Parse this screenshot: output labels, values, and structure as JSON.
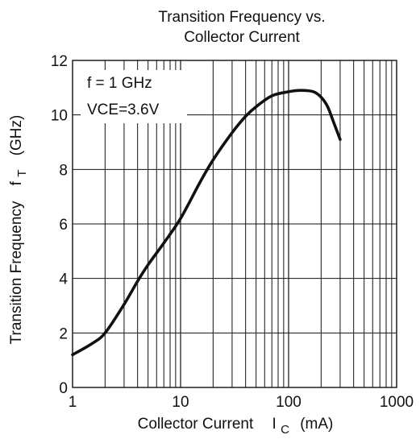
{
  "chart_data": {
    "type": "line",
    "title_lines": [
      "Transition Frequency vs.",
      "Collector Current"
    ],
    "xlabel": {
      "main": "Collector Current",
      "symbol": "I",
      "subscript": "C",
      "unit": "(mA)"
    },
    "ylabel": {
      "main": "Transition Frequency",
      "symbol": "f",
      "subscript": "T",
      "unit": "(GHz)"
    },
    "x_scale": "log",
    "xlim": [
      1,
      1000
    ],
    "ylim": [
      0,
      12
    ],
    "x_ticks": [
      1,
      10,
      100,
      1000
    ],
    "x_tick_labels": [
      "1",
      "10",
      "100",
      "1000"
    ],
    "y_ticks": [
      0,
      2,
      4,
      6,
      8,
      10,
      12
    ],
    "y_tick_labels": [
      "0",
      "2",
      "4",
      "6",
      "8",
      "10",
      "12"
    ],
    "grid": true,
    "annotations": [
      "f = 1 GHz",
      "VCE=3.6V"
    ],
    "series": [
      {
        "x": [
          1,
          1.5,
          2,
          3,
          4,
          5,
          7,
          10,
          15,
          20,
          30,
          40,
          50,
          70,
          100,
          130,
          170,
          200,
          230,
          260,
          300
        ],
        "y": [
          1.2,
          1.6,
          2.0,
          3.05,
          3.9,
          4.5,
          5.3,
          6.2,
          7.5,
          8.35,
          9.35,
          9.95,
          10.3,
          10.7,
          10.85,
          10.9,
          10.85,
          10.65,
          10.3,
          9.75,
          9.1
        ]
      }
    ]
  }
}
